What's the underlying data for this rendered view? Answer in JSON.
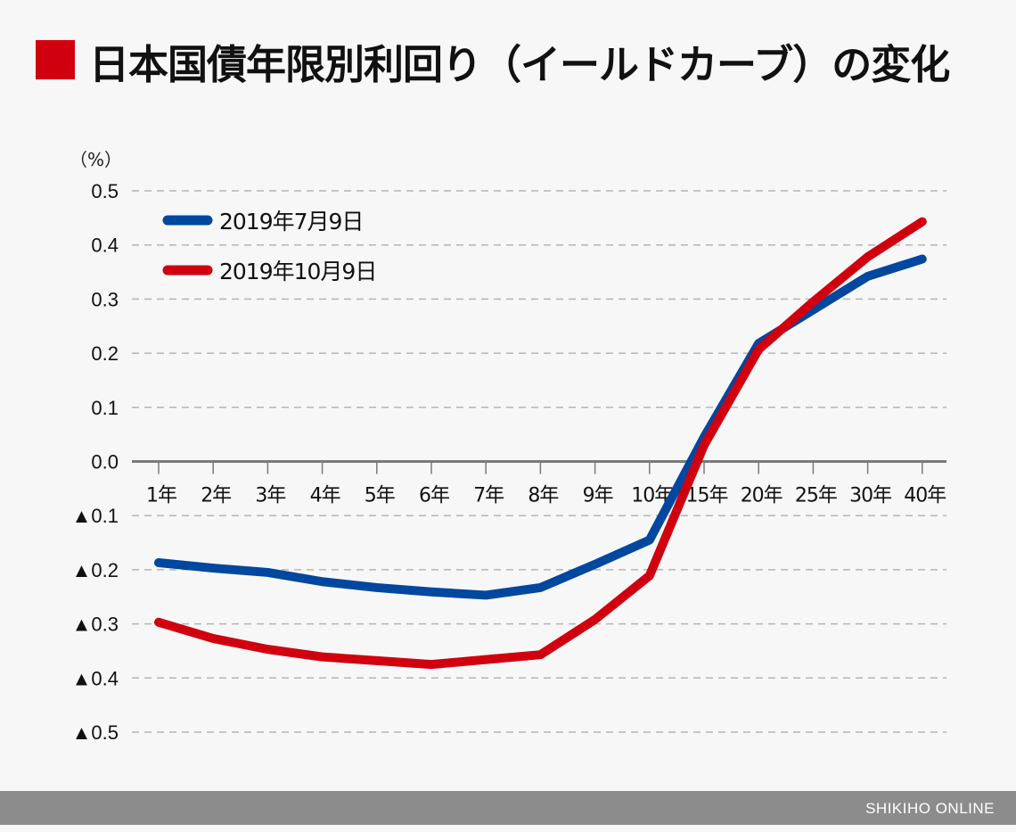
{
  "title": "日本国債年限別利回り（イールドカーブ）の変化",
  "footer": "SHIKIHO ONLINE",
  "colors": {
    "accent": "#d0000f",
    "blue": "#0047a0",
    "red": "#d0000f"
  },
  "chart_data": {
    "type": "line",
    "title": "日本国債年限別利回り（イールドカーブ）の変化",
    "ylabel": "（%）",
    "xlabel": "",
    "categories": [
      "1年",
      "2年",
      "3年",
      "4年",
      "5年",
      "6年",
      "7年",
      "8年",
      "9年",
      "10年",
      "15年",
      "20年",
      "25年",
      "30年",
      "40年"
    ],
    "ylim": [
      -0.5,
      0.5
    ],
    "yticks": [
      0.5,
      0.4,
      0.3,
      0.2,
      0.1,
      0.0,
      -0.1,
      -0.2,
      -0.3,
      -0.4,
      -0.5
    ],
    "ytick_labels": [
      "0.5",
      "0.4",
      "0.3",
      "0.2",
      "0.1",
      "0.0",
      "▲0.1",
      "▲0.2",
      "▲0.3",
      "▲0.4",
      "▲0.5"
    ],
    "grid": true,
    "legend": "top-left",
    "series": [
      {
        "name": "2019年7月9日",
        "color": "#0047a0",
        "values": [
          -0.187,
          -0.197,
          -0.205,
          -0.222,
          -0.233,
          -0.241,
          -0.247,
          -0.233,
          -0.19,
          -0.145,
          0.045,
          0.218,
          0.28,
          0.342,
          0.374
        ]
      },
      {
        "name": "2019年10月9日",
        "color": "#d0000f",
        "values": [
          -0.297,
          -0.327,
          -0.347,
          -0.361,
          -0.368,
          -0.375,
          -0.366,
          -0.357,
          -0.292,
          -0.211,
          0.03,
          0.207,
          0.295,
          0.378,
          0.443
        ]
      }
    ]
  }
}
